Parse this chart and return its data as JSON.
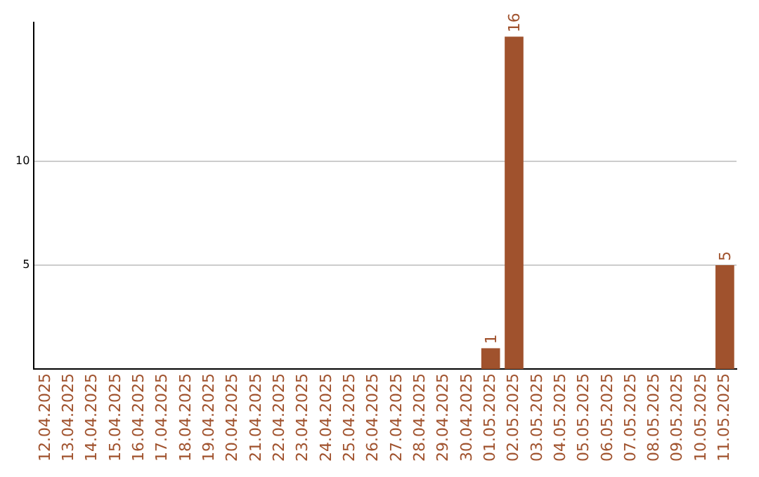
{
  "chart_data": {
    "type": "bar",
    "categories": [
      "12.04.2025",
      "13.04.2025",
      "14.04.2025",
      "15.04.2025",
      "16.04.2025",
      "17.04.2025",
      "18.04.2025",
      "19.04.2025",
      "20.04.2025",
      "21.04.2025",
      "22.04.2025",
      "23.04.2025",
      "24.04.2025",
      "25.04.2025",
      "26.04.2025",
      "27.04.2025",
      "28.04.2025",
      "29.04.2025",
      "30.04.2025",
      "01.05.2025",
      "02.05.2025",
      "03.05.2025",
      "04.05.2025",
      "05.05.2025",
      "06.05.2025",
      "07.05.2025",
      "08.05.2025",
      "09.05.2025",
      "10.05.2025",
      "11.05.2025"
    ],
    "values": [
      0,
      0,
      0,
      0,
      0,
      0,
      0,
      0,
      0,
      0,
      0,
      0,
      0,
      0,
      0,
      0,
      0,
      0,
      0,
      1,
      16,
      0,
      0,
      0,
      0,
      0,
      0,
      0,
      0,
      5
    ],
    "value_labels": [
      null,
      null,
      null,
      null,
      null,
      null,
      null,
      null,
      null,
      null,
      null,
      null,
      null,
      null,
      null,
      null,
      null,
      null,
      null,
      "1",
      "16",
      null,
      null,
      null,
      null,
      null,
      null,
      null,
      null,
      "5"
    ],
    "color": "#a0522d",
    "ylim": [
      0,
      16.7
    ],
    "yticks": [
      5,
      10
    ],
    "grid": "y",
    "legend": false
  }
}
